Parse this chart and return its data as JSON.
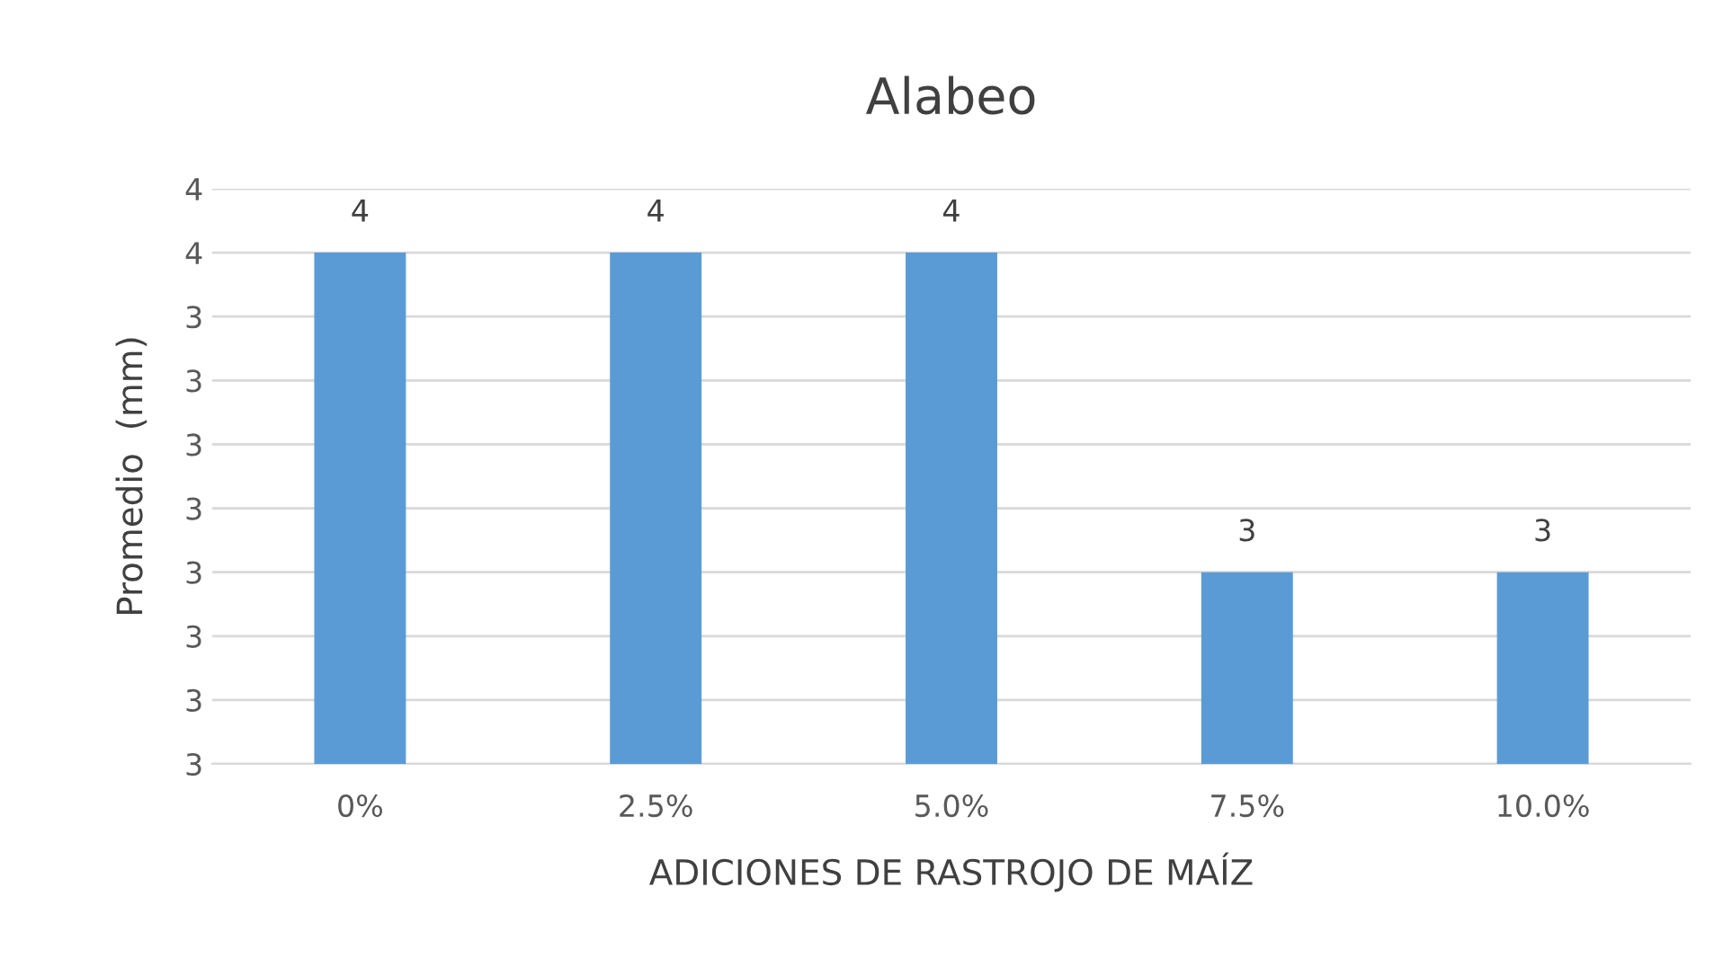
{
  "chart_data": {
    "type": "bar",
    "title": "Alabeo",
    "xlabel": "ADICIONES DE RASTROJO DE MAÍZ",
    "ylabel": "Promedio  (mm)",
    "categories": [
      "0%",
      "2.5%",
      "5.0%",
      "7.5%",
      "10.0%"
    ],
    "values": [
      3.5,
      3.5,
      3.5,
      3.0,
      3.0
    ],
    "value_labels": [
      "4",
      "4",
      "4",
      "3",
      "3"
    ],
    "color": "#5b9bd5",
    "ylim": [
      2.7,
      3.6
    ],
    "yticks": [
      {
        "value": 2.7,
        "label": "3"
      },
      {
        "value": 2.8,
        "label": "3"
      },
      {
        "value": 2.9,
        "label": "3"
      },
      {
        "value": 3.0,
        "label": "3"
      },
      {
        "value": 3.1,
        "label": "3"
      },
      {
        "value": 3.2,
        "label": "3"
      },
      {
        "value": 3.3,
        "label": "3"
      },
      {
        "value": 3.4,
        "label": "3"
      },
      {
        "value": 3.5,
        "label": "4"
      },
      {
        "value": 3.6,
        "label": "4"
      }
    ],
    "grid": "y",
    "legend": false
  }
}
